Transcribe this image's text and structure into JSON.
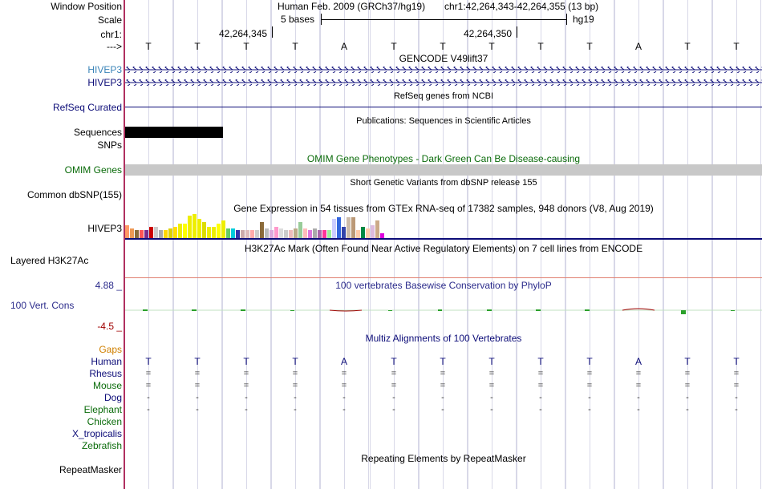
{
  "header": {
    "window_position_label": "Window Position",
    "scale_label": "Scale",
    "chrom_label": "chr1:",
    "strand_label": "--->",
    "assembly": "Human Feb. 2009 (GRCh37/hg19)",
    "position": "chr1:42,264,343-42,264,355 (13 bp)",
    "scale_text": "5 bases",
    "db": "hg19",
    "coord_1": "42,264,345",
    "coord_2": "42,264,350"
  },
  "bases": [
    "T",
    "T",
    "T",
    "T",
    "A",
    "T",
    "T",
    "T",
    "T",
    "T",
    "A",
    "T",
    "T"
  ],
  "tracks": {
    "gencode_title": "GENCODE V49lift37",
    "gene1": "HIVEP3",
    "gene2": "HIVEP3",
    "refseq_label": "RefSeq Curated",
    "refseq_title": "RefSeq genes from NCBI",
    "pubs_title": "Publications: Sequences in Scientific Articles",
    "sequences_label": "Sequences",
    "snps_label": "SNPs",
    "omim_title": "OMIM Gene Phenotypes - Dark Green Can Be Disease-causing",
    "omim_label": "OMIM Genes",
    "dbsnp_title": "Short Genetic Variants from dbSNP release 155",
    "dbsnp_label": "Common dbSNP(155)",
    "gtex_title": "Gene Expression in 54 tissues from GTEx RNA-seq of 17382 samples, 948 donors (V8, Aug 2019)",
    "gtex_label": "HIVEP3",
    "h3k27_title": "H3K27Ac Mark (Often Found Near Active Regulatory Elements) on 7 cell lines from ENCODE",
    "h3k27_label": "Layered H3K27Ac",
    "cons_max": "4.88 _",
    "cons_title": "100 vertebrates Basewise Conservation by PhyloP",
    "cons_label": "100 Vert. Cons",
    "cons_min": "-4.5 _",
    "multiz_title": "Multiz Alignments of 100 Vertebrates",
    "gaps_label": "Gaps",
    "repeat_title": "Repeating Elements by RepeatMasker",
    "repeat_label": "RepeatMasker"
  },
  "species": [
    {
      "name": "Human",
      "row": [
        "T",
        "T",
        "T",
        "T",
        "A",
        "T",
        "T",
        "T",
        "T",
        "T",
        "A",
        "T",
        "T"
      ]
    },
    {
      "name": "Rhesus",
      "row": [
        "=",
        "=",
        "=",
        "=",
        "=",
        "=",
        "=",
        "=",
        "=",
        "=",
        "=",
        "=",
        "="
      ]
    },
    {
      "name": "Mouse",
      "row": [
        "=",
        "=",
        "=",
        "=",
        "=",
        "=",
        "=",
        "=",
        "=",
        "=",
        "=",
        "=",
        "="
      ]
    },
    {
      "name": "Dog",
      "row": [
        "-",
        "-",
        "-",
        "-",
        "-",
        "-",
        "-",
        "-",
        "-",
        "-",
        "-",
        "-",
        "-"
      ]
    },
    {
      "name": "Elephant",
      "row": [
        "-",
        "-",
        "-",
        "-",
        "-",
        "-",
        "-",
        "-",
        "-",
        "-",
        "-",
        "-",
        "-"
      ]
    },
    {
      "name": "Chicken",
      "row": []
    },
    {
      "name": "X_tropicalis",
      "row": []
    },
    {
      "name": "Zebrafish",
      "row": []
    }
  ],
  "colors": {
    "gencode": "#0c0c78",
    "gencode_label": "#3a84b8",
    "refseq": "#0c0c78",
    "omim": "#0a6b0a",
    "omim_bar": "#c8c8c8",
    "cons_blue": "#2c2c8c",
    "cons_red": "#a00000",
    "gaps": "#d08000",
    "human": "#0c0c78",
    "mammal": "#0c0c78",
    "vert": "#0a6b0a",
    "h3k27_line": "#e08070"
  },
  "gtex_values": [
    16,
    12,
    10,
    10,
    10,
    14,
    14,
    10,
    10,
    12,
    14,
    18,
    18,
    28,
    30,
    24,
    20,
    14,
    14,
    18,
    22,
    12,
    12,
    10,
    10,
    10,
    10,
    10,
    20,
    12,
    10,
    14,
    12,
    10,
    10,
    12,
    20,
    12,
    10,
    12,
    10,
    10,
    10,
    24,
    26,
    14,
    26,
    26,
    10,
    14,
    12,
    16,
    22,
    6
  ],
  "gtex_colors": [
    "#ff9966",
    "#ee9955",
    "#8b6b3a",
    "#ff5555",
    "#7a2c8c",
    "#cc0000",
    "#cccccc",
    "#aaaaaa",
    "#ffd700",
    "#ddd000",
    "#ffdd00",
    "#eeee00",
    "#ffff00",
    "#eeee00",
    "#eeee00",
    "#eeee00",
    "#dddd00",
    "#eeee00",
    "#eeee00",
    "#ffff00",
    "#eeee00",
    "#66cc66",
    "#00ccdd",
    "#3333aa",
    "#ccaaaa",
    "#ddbbbb",
    "#ffaaaa",
    "#cccccc",
    "#8b6b3a",
    "#bbbbbb",
    "#ddaadd",
    "#ff99cc",
    "#dddddd",
    "#cccccc",
    "#eebbbb",
    "#bbaa88",
    "#99cc99",
    "#ffbbbb",
    "#dd77dd",
    "#aaaaaa",
    "#aa66aa",
    "#ff3399",
    "#99ee99",
    "#ccccff",
    "#3366dd",
    "#3344aa",
    "#ccbbaa",
    "#bb9977",
    "#ffccaa",
    "#008844",
    "#ffccaa",
    "#ddbbdd",
    "#ccaa88",
    "#dd00dd"
  ]
}
